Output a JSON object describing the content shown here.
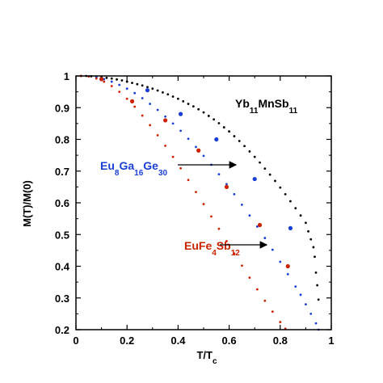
{
  "chart_data": {
    "type": "scatter",
    "title": "",
    "xlabel": {
      "main": "T/T",
      "sub": "c"
    },
    "ylabel": "M(T)/M(0)",
    "xlim": [
      0,
      1
    ],
    "ylim": [
      0.2,
      1
    ],
    "xticks": [
      0,
      0.2,
      0.4,
      0.6,
      0.8,
      1
    ],
    "xtick_labels": [
      "0",
      "0.2",
      "0.4",
      "0.6",
      "0.8",
      "1"
    ],
    "yticks": [
      0.2,
      0.3,
      0.4,
      0.5,
      0.6,
      0.7,
      0.8,
      0.9,
      1
    ],
    "ytick_labels": [
      "0.2",
      "0.3",
      "0.4",
      "0.5",
      "0.6",
      "0.7",
      "0.8",
      "0.9",
      "1"
    ],
    "grid": false,
    "legend": "none",
    "series": [
      {
        "label_parts": [
          [
            "Yb",
            false
          ],
          [
            "11",
            true
          ],
          [
            "MnSb",
            false
          ],
          [
            "11",
            true
          ]
        ],
        "color": "#000000",
        "style": "small-points",
        "points": [
          [
            0.02,
            1.0
          ],
          [
            0.04,
            1.0
          ],
          [
            0.06,
            0.999
          ],
          [
            0.08,
            0.998
          ],
          [
            0.1,
            0.996
          ],
          [
            0.12,
            0.994
          ],
          [
            0.14,
            0.992
          ],
          [
            0.16,
            0.989
          ],
          [
            0.18,
            0.986
          ],
          [
            0.2,
            0.982
          ],
          [
            0.22,
            0.978
          ],
          [
            0.24,
            0.974
          ],
          [
            0.26,
            0.97
          ],
          [
            0.28,
            0.965
          ],
          [
            0.3,
            0.96
          ],
          [
            0.32,
            0.954
          ],
          [
            0.34,
            0.948
          ],
          [
            0.36,
            0.942
          ],
          [
            0.38,
            0.935
          ],
          [
            0.4,
            0.928
          ],
          [
            0.42,
            0.92
          ],
          [
            0.44,
            0.912
          ],
          [
            0.46,
            0.904
          ],
          [
            0.48,
            0.895
          ],
          [
            0.5,
            0.885
          ],
          [
            0.52,
            0.874
          ],
          [
            0.54,
            0.863
          ],
          [
            0.56,
            0.851
          ],
          [
            0.58,
            0.838
          ],
          [
            0.6,
            0.825
          ],
          [
            0.62,
            0.81
          ],
          [
            0.64,
            0.795
          ],
          [
            0.66,
            0.779
          ],
          [
            0.68,
            0.762
          ],
          [
            0.7,
            0.745
          ],
          [
            0.72,
            0.727
          ],
          [
            0.74,
            0.708
          ],
          [
            0.76,
            0.689
          ],
          [
            0.78,
            0.669
          ],
          [
            0.8,
            0.648
          ],
          [
            0.82,
            0.627
          ],
          [
            0.84,
            0.605
          ],
          [
            0.86,
            0.583
          ],
          [
            0.88,
            0.56
          ],
          [
            0.9,
            0.537
          ],
          [
            0.91,
            0.51
          ],
          [
            0.92,
            0.485
          ],
          [
            0.93,
            0.46
          ],
          [
            0.935,
            0.43
          ],
          [
            0.94,
            0.38
          ],
          [
            0.945,
            0.34
          ],
          [
            0.95,
            0.295
          ]
        ]
      },
      {
        "label_parts": [
          [
            "Eu",
            false
          ],
          [
            "8",
            true
          ],
          [
            "Ga",
            false
          ],
          [
            "16",
            true
          ],
          [
            "Ge",
            false
          ],
          [
            "30",
            true
          ]
        ],
        "color": "#1a3fd6",
        "style": "small-points",
        "points": [
          [
            0.02,
            1.0
          ],
          [
            0.05,
            0.999
          ],
          [
            0.08,
            0.996
          ],
          [
            0.11,
            0.99
          ],
          [
            0.14,
            0.982
          ],
          [
            0.17,
            0.972
          ],
          [
            0.2,
            0.96
          ],
          [
            0.23,
            0.946
          ],
          [
            0.26,
            0.93
          ],
          [
            0.29,
            0.912
          ],
          [
            0.32,
            0.893
          ],
          [
            0.35,
            0.872
          ],
          [
            0.38,
            0.85
          ],
          [
            0.41,
            0.827
          ],
          [
            0.44,
            0.802
          ],
          [
            0.47,
            0.776
          ],
          [
            0.5,
            0.748
          ],
          [
            0.53,
            0.72
          ],
          [
            0.56,
            0.69
          ],
          [
            0.59,
            0.659
          ],
          [
            0.62,
            0.627
          ],
          [
            0.65,
            0.594
          ],
          [
            0.68,
            0.56
          ],
          [
            0.71,
            0.525
          ],
          [
            0.74,
            0.489
          ],
          [
            0.77,
            0.452
          ],
          [
            0.8,
            0.414
          ],
          [
            0.83,
            0.375
          ],
          [
            0.86,
            0.336
          ],
          [
            0.88,
            0.31
          ],
          [
            0.9,
            0.28
          ],
          [
            0.92,
            0.25
          ],
          [
            0.94,
            0.22
          ],
          [
            0.95,
            0.2
          ]
        ]
      },
      {
        "color": "#1a3fd6",
        "style": "large-markers",
        "points": [
          [
            0.1,
            0.99
          ],
          [
            0.28,
            0.955
          ],
          [
            0.41,
            0.88
          ],
          [
            0.55,
            0.8
          ],
          [
            0.7,
            0.675
          ],
          [
            0.84,
            0.52
          ]
        ]
      },
      {
        "label_parts": [
          [
            "EuFe",
            false
          ],
          [
            "4",
            true
          ],
          [
            "Sb",
            false
          ],
          [
            "12",
            true
          ]
        ],
        "color": "#cc2200",
        "style": "small-points",
        "points": [
          [
            0.02,
            1.0
          ],
          [
            0.05,
            0.998
          ],
          [
            0.08,
            0.992
          ],
          [
            0.11,
            0.982
          ],
          [
            0.14,
            0.968
          ],
          [
            0.17,
            0.95
          ],
          [
            0.2,
            0.928
          ],
          [
            0.23,
            0.903
          ],
          [
            0.26,
            0.875
          ],
          [
            0.29,
            0.845
          ],
          [
            0.32,
            0.813
          ],
          [
            0.35,
            0.78
          ],
          [
            0.38,
            0.745
          ],
          [
            0.41,
            0.709
          ],
          [
            0.44,
            0.672
          ],
          [
            0.47,
            0.634
          ],
          [
            0.5,
            0.596
          ],
          [
            0.53,
            0.557
          ],
          [
            0.56,
            0.518
          ],
          [
            0.59,
            0.479
          ],
          [
            0.62,
            0.44
          ],
          [
            0.65,
            0.402
          ],
          [
            0.68,
            0.364
          ],
          [
            0.71,
            0.327
          ],
          [
            0.74,
            0.291
          ],
          [
            0.77,
            0.257
          ],
          [
            0.8,
            0.224
          ],
          [
            0.82,
            0.203
          ]
        ]
      },
      {
        "color": "#cc2200",
        "style": "large-markers",
        "points": [
          [
            0.1,
            0.99
          ],
          [
            0.22,
            0.92
          ],
          [
            0.35,
            0.86
          ],
          [
            0.48,
            0.765
          ],
          [
            0.59,
            0.65
          ],
          [
            0.72,
            0.53
          ],
          [
            0.83,
            0.4
          ]
        ]
      }
    ]
  }
}
